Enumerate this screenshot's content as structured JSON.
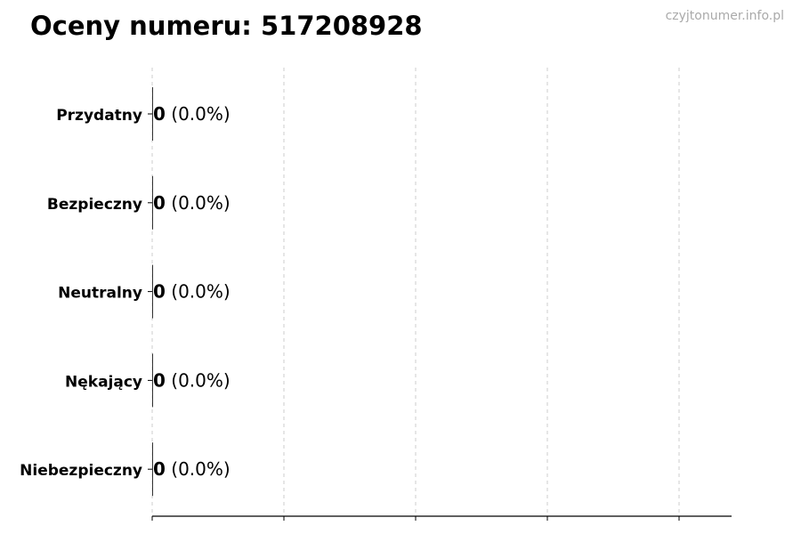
{
  "chart_data": {
    "type": "bar",
    "orientation": "horizontal",
    "title": "Oceny numeru: 517208928",
    "watermark": "czyjtonumer.info.pl",
    "categories": [
      "Przydatny",
      "Bezpieczny",
      "Neutralny",
      "Nękający",
      "Niebezpieczny"
    ],
    "values": [
      0,
      0,
      0,
      0,
      0
    ],
    "percent_labels": [
      "(0.0%)",
      "(0.0%)",
      "(0.0%)",
      "(0.0%)",
      "(0.0%)"
    ],
    "xlabel": "",
    "ylabel": "",
    "x_ticks_count": 5,
    "grid": "vertical dashed",
    "bar_color": "#333333"
  }
}
